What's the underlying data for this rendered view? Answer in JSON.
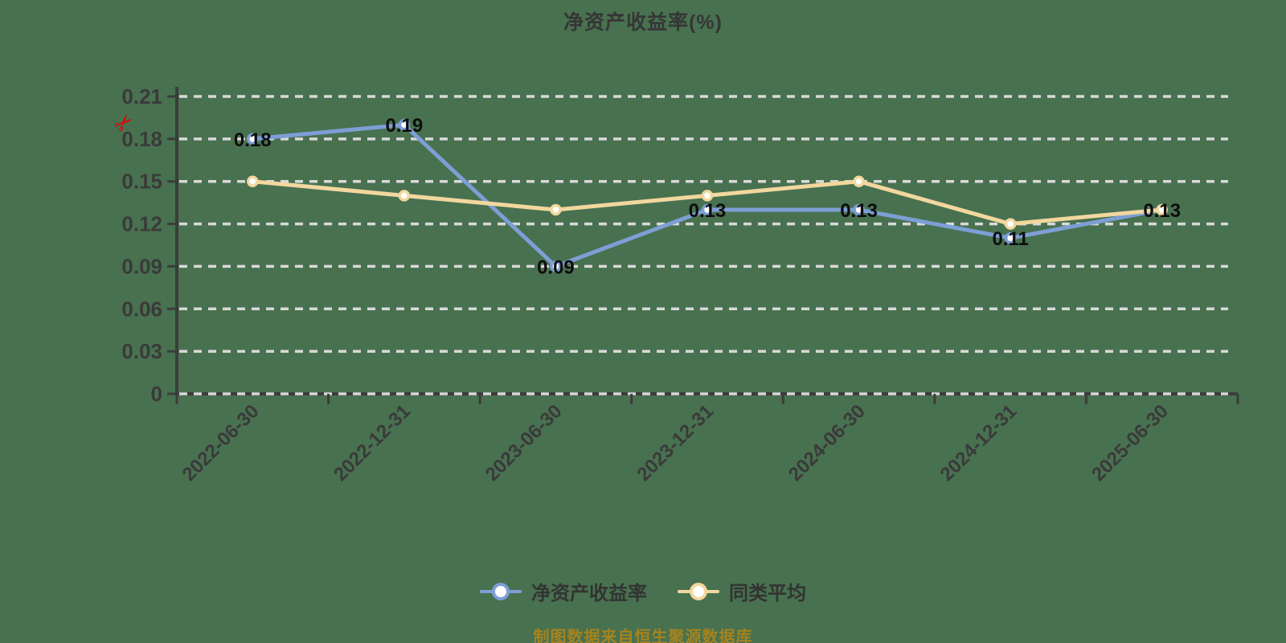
{
  "title": "净资产收益率(%)",
  "caption": "制图数据来自恒生聚源数据库",
  "icons": {
    "scissors": "✂"
  },
  "colors": {
    "background": "#487150",
    "axis": "#3c3c3c",
    "axis_label": "#3a3a3a",
    "gridline": "#d9d9d9",
    "point_label": "#0d0d0d",
    "series1": "#7e9ed5",
    "series2": "#f2d79e",
    "marker_fill": "#ffffff",
    "caption": "#a5831d",
    "scissors": "#e60000",
    "title": "#363636"
  },
  "legend": {
    "items": [
      {
        "label": "净资产收益率",
        "color": "#7e9ed5"
      },
      {
        "label": "同类平均",
        "color": "#f2d79e"
      }
    ]
  },
  "chart_data": {
    "type": "line",
    "title": "净资产收益率(%)",
    "xlabel": "",
    "ylabel": "",
    "categories": [
      "2022-06-30",
      "2022-12-31",
      "2023-06-30",
      "2023-12-31",
      "2024-06-30",
      "2024-12-31",
      "2025-06-30"
    ],
    "series": [
      {
        "name": "净资产收益率",
        "color": "#7e9ed5",
        "values": [
          0.18,
          0.19,
          0.09,
          0.13,
          0.13,
          0.11,
          0.13
        ],
        "point_labels": [
          "0.18",
          "0.19",
          "0.09",
          "0.13",
          "0.13",
          "0.11",
          "0.13"
        ]
      },
      {
        "name": "同类平均",
        "color": "#f2d79e",
        "values": [
          0.15,
          0.14,
          0.13,
          0.14,
          0.15,
          0.12,
          0.13
        ],
        "point_labels": []
      }
    ],
    "ylim": [
      0,
      0.21
    ],
    "yticks": [
      "0",
      "0.03",
      "0.06",
      "0.09",
      "0.12",
      "0.15",
      "0.18",
      "0.21"
    ],
    "grid": "horizontal-dashed-white",
    "legend_position": "bottom",
    "annotations": [
      "red scissors mark near y-axis at 0.18"
    ]
  }
}
